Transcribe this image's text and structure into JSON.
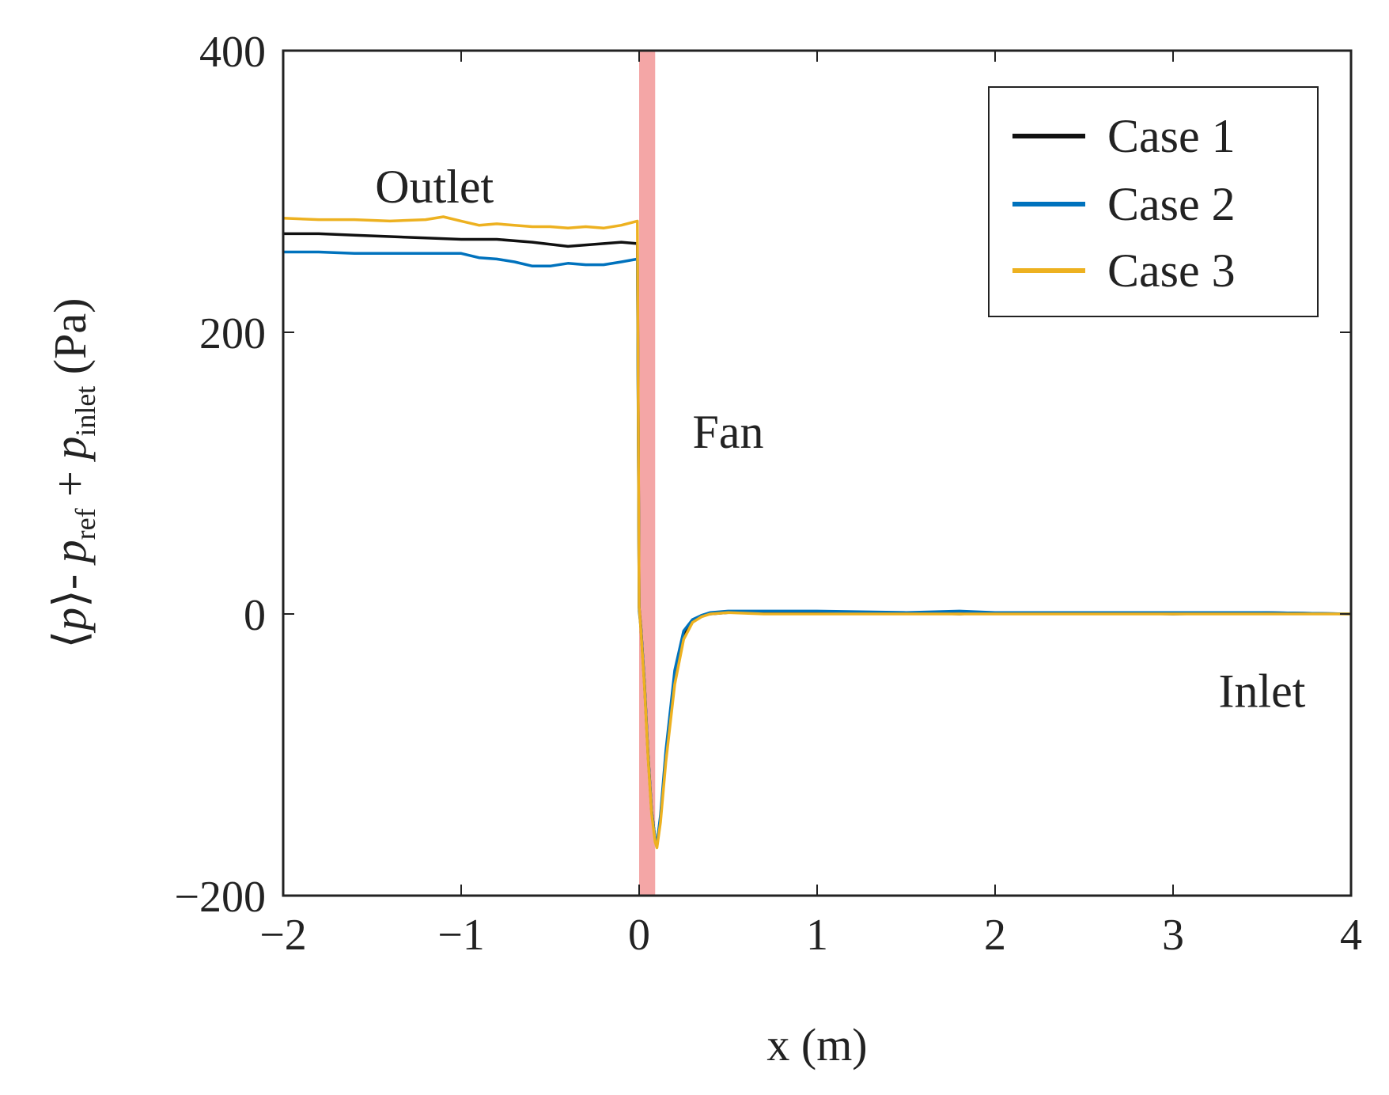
{
  "chart_data": {
    "type": "line",
    "xlabel": "x (m)",
    "ylabel": {
      "prefix": "⟨",
      "p1": "p",
      "mid1": "⟩- ",
      "p2": "p",
      "sub2": "ref",
      "mid2": " + ",
      "p3": "p",
      "sub3": "inlet",
      "unit": " (Pa)"
    },
    "xlim": [
      -2,
      4
    ],
    "ylim": [
      -200,
      400
    ],
    "xticks": [
      -2,
      -1,
      0,
      1,
      2,
      3,
      4
    ],
    "yticks": [
      -200,
      0,
      200,
      400
    ],
    "xtick_labels": [
      "−2",
      "−1",
      "0",
      "1",
      "2",
      "3",
      "4"
    ],
    "ytick_labels": [
      "−200",
      "0",
      "200",
      "400"
    ],
    "grid": false,
    "legend_position": "top-right",
    "fan_band": {
      "x0": 0.0,
      "x1": 0.09,
      "color": "#f4a6a6"
    },
    "annotations": [
      {
        "text": "Outlet",
        "x": -1.15,
        "y": 292
      },
      {
        "text": "Fan",
        "x": 0.5,
        "y": 118
      },
      {
        "text": "Inlet",
        "x": 3.5,
        "y": -66
      }
    ],
    "series": [
      {
        "name": "Case 1",
        "color": "#111111",
        "x": [
          -2,
          -1.8,
          -1.6,
          -1.4,
          -1.2,
          -1.0,
          -0.8,
          -0.6,
          -0.4,
          -0.3,
          -0.2,
          -0.1,
          -0.01,
          0.0,
          0.01,
          0.03,
          0.05,
          0.07,
          0.09,
          0.1,
          0.12,
          0.15,
          0.2,
          0.25,
          0.3,
          0.35,
          0.4,
          0.5,
          0.7,
          1.0,
          1.5,
          1.8,
          2.0,
          2.5,
          3.0,
          3.5,
          4.0
        ],
        "y": [
          270,
          270,
          269,
          268,
          267,
          266,
          266,
          264,
          261,
          262,
          263,
          264,
          263,
          5,
          -10,
          -50,
          -100,
          -140,
          -160,
          -165,
          -145,
          -100,
          -45,
          -15,
          -5,
          -1,
          0,
          1,
          1,
          1,
          1,
          0,
          1,
          1,
          0,
          1,
          0
        ]
      },
      {
        "name": "Case 2",
        "color": "#0072bd",
        "x": [
          -2,
          -1.8,
          -1.6,
          -1.4,
          -1.2,
          -1.0,
          -0.9,
          -0.8,
          -0.7,
          -0.6,
          -0.5,
          -0.4,
          -0.3,
          -0.2,
          -0.1,
          -0.01,
          0.0,
          0.01,
          0.03,
          0.05,
          0.07,
          0.09,
          0.1,
          0.12,
          0.15,
          0.2,
          0.25,
          0.3,
          0.35,
          0.4,
          0.5,
          0.7,
          1.0,
          1.5,
          1.8,
          2.0,
          2.5,
          3.0,
          3.5,
          4.0
        ],
        "y": [
          257,
          257,
          256,
          256,
          256,
          256,
          253,
          252,
          250,
          247,
          247,
          249,
          248,
          248,
          250,
          252,
          2,
          -10,
          -50,
          -100,
          -140,
          -160,
          -163,
          -143,
          -97,
          -40,
          -12,
          -4,
          -1,
          1,
          2,
          2,
          2,
          1,
          2,
          1,
          1,
          1,
          1,
          0
        ]
      },
      {
        "name": "Case 3",
        "color": "#edb120",
        "x": [
          -2,
          -1.8,
          -1.6,
          -1.4,
          -1.2,
          -1.1,
          -1.0,
          -0.9,
          -0.8,
          -0.7,
          -0.6,
          -0.5,
          -0.4,
          -0.3,
          -0.2,
          -0.1,
          -0.01,
          0.0,
          0.01,
          0.03,
          0.05,
          0.07,
          0.09,
          0.1,
          0.12,
          0.15,
          0.2,
          0.25,
          0.3,
          0.35,
          0.4,
          0.5,
          0.7,
          1.0,
          1.5,
          1.8,
          2.0,
          2.5,
          3.0,
          3.5,
          4.0
        ],
        "y": [
          281,
          280,
          280,
          279,
          280,
          282,
          279,
          276,
          277,
          276,
          275,
          275,
          274,
          275,
          274,
          276,
          279,
          5,
          -12,
          -52,
          -102,
          -142,
          -162,
          -166,
          -148,
          -105,
          -50,
          -18,
          -6,
          -2,
          0,
          1,
          0,
          0,
          0,
          0,
          0,
          0,
          0,
          0,
          0
        ]
      }
    ]
  }
}
